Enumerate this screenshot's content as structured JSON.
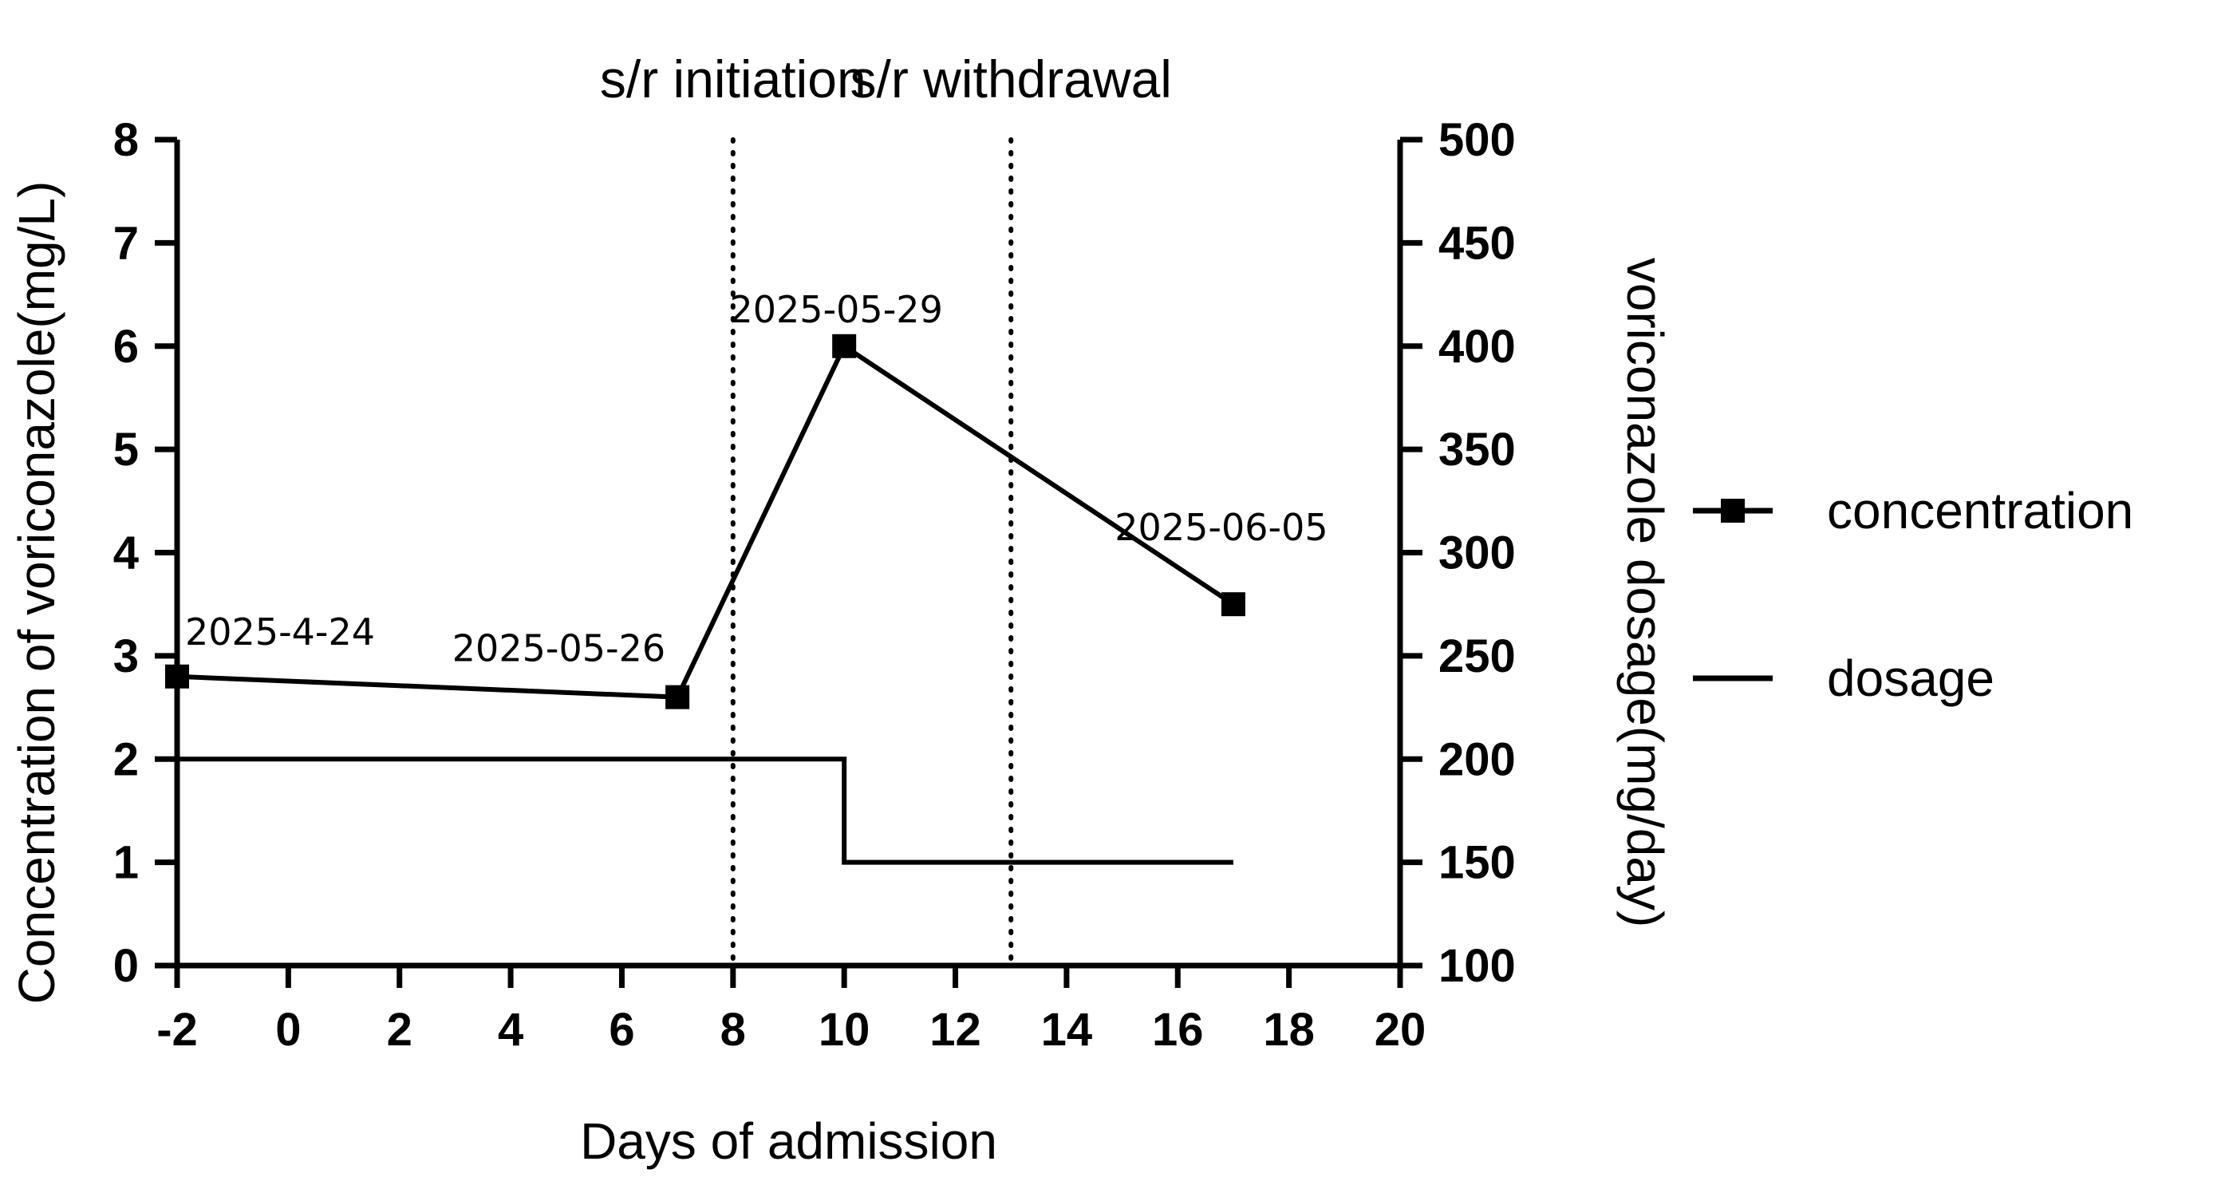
{
  "chart_data": {
    "type": "line",
    "xlabel": "Days of admission",
    "ylabel": "Concentration of voriconazole(mg/L)",
    "y2label": "voriconazole dosage(mg/day)",
    "xlim": [
      -2,
      20
    ],
    "ylim": [
      0,
      8
    ],
    "y2lim": [
      100,
      500
    ],
    "xticks": [
      -2,
      0,
      2,
      4,
      6,
      8,
      10,
      12,
      14,
      16,
      18,
      20
    ],
    "yticks": [
      0,
      1,
      2,
      3,
      4,
      5,
      6,
      7,
      8
    ],
    "y2ticks": [
      100,
      150,
      200,
      250,
      300,
      350,
      400,
      450,
      500
    ],
    "grid": false,
    "legend_position": "right",
    "series": [
      {
        "name": "concentration",
        "axis": "left",
        "marker": "square",
        "x": [
          -2,
          7,
          10,
          17
        ],
        "y": [
          2.8,
          2.6,
          6.0,
          3.5
        ],
        "labels": [
          "2025-4-24",
          "2025-05-26",
          "2025-05-29",
          "2025-06-05"
        ]
      },
      {
        "name": "dosage",
        "axis": "right",
        "marker": "none",
        "step": true,
        "x": [
          -2,
          10,
          10,
          17
        ],
        "y": [
          200,
          200,
          150,
          150
        ]
      }
    ],
    "events": [
      {
        "x": 8,
        "label": "s/r initiation"
      },
      {
        "x": 13,
        "label": "s/r withdrawal"
      }
    ],
    "colors": {
      "line": "#000000"
    }
  }
}
